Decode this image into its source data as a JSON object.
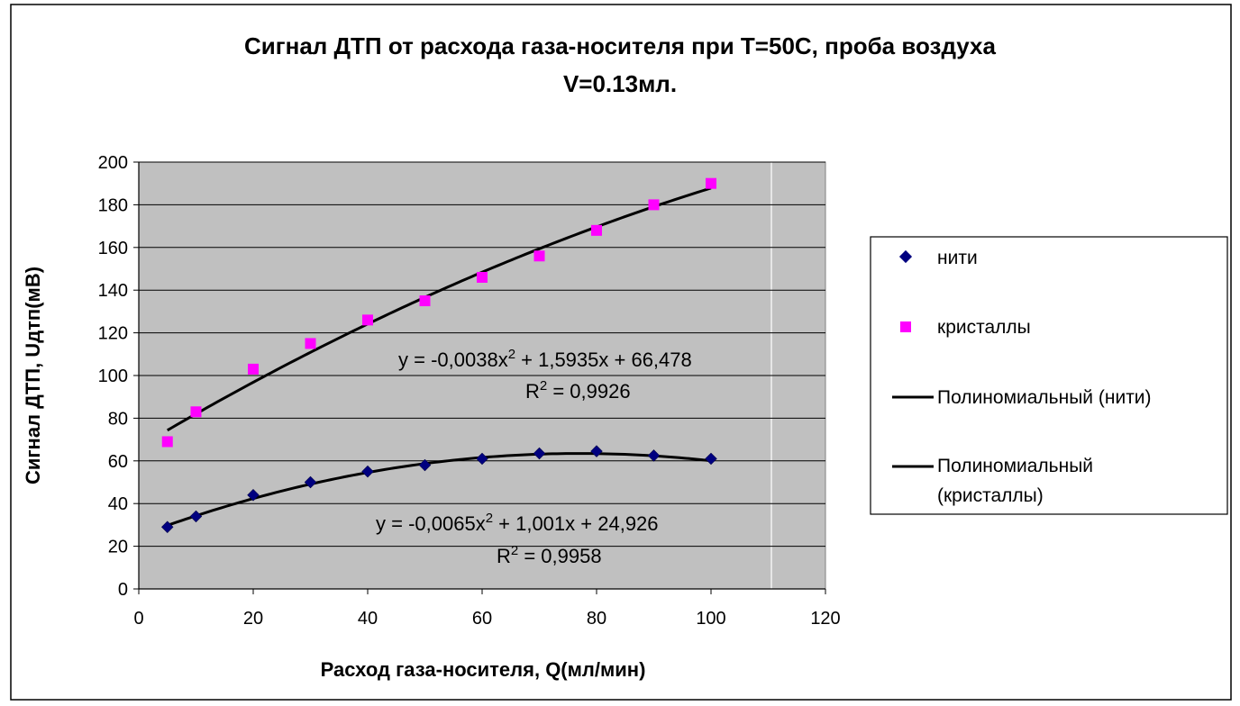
{
  "chart_data": {
    "type": "scatter",
    "title_line1": "Сигнал ДТП от расхода газа-носителя при T=50С, проба воздуха",
    "title_line2": "V=0.13мл.",
    "xlabel": "Расход газа-носителя, Q(мл/мин)",
    "ylabel": "Сигнал ДТП, Uдтп(мВ)",
    "xlim": [
      0,
      120
    ],
    "ylim": [
      0,
      200
    ],
    "xticks": [
      0,
      20,
      40,
      60,
      80,
      100,
      120
    ],
    "yticks": [
      0,
      20,
      40,
      60,
      80,
      100,
      120,
      140,
      160,
      180,
      200
    ],
    "grid": "horizontal",
    "plot_background": "#c0c0c0",
    "legend_position": "right",
    "series": [
      {
        "name": "нити",
        "marker": "diamond",
        "color": "#000080",
        "x": [
          5,
          10,
          20,
          30,
          40,
          50,
          60,
          70,
          80,
          90,
          100
        ],
        "y": [
          29,
          34,
          44,
          50,
          55,
          58,
          61,
          63.5,
          64.5,
          62.5,
          61
        ],
        "trend": {
          "a": -0.0065,
          "b": 1.001,
          "c": 24.926,
          "x_range": [
            5,
            100
          ]
        },
        "equation": "y = -0,0065x",
        "equation_tail": " + 1,001x + 24,926",
        "r2_value": " = 0,9958"
      },
      {
        "name": "кристаллы",
        "marker": "square",
        "color": "#ff00ff",
        "x": [
          5,
          10,
          20,
          30,
          40,
          50,
          60,
          70,
          80,
          90,
          100
        ],
        "y": [
          69,
          83,
          103,
          115,
          126,
          135,
          146,
          156,
          168,
          180,
          190
        ],
        "trend": {
          "a": -0.0038,
          "b": 1.5935,
          "c": 66.478,
          "x_range": [
            5,
            100
          ]
        },
        "equation": "y = -0,0038x",
        "equation_tail": " + 1,5935x + 66,478",
        "r2_value": " = 0,9926"
      }
    ],
    "r2_prefix": "R",
    "superscript": "2",
    "legend": [
      {
        "label": "нити",
        "kind": "diamond",
        "color": "#000080"
      },
      {
        "label": "кристаллы",
        "kind": "square",
        "color": "#ff00ff"
      },
      {
        "label": "Полиномиальный (нити)",
        "kind": "line",
        "color": "#000000"
      },
      {
        "label_line1": "Полиномиальный",
        "label_line2": "(кристаллы)",
        "kind": "line",
        "color": "#000000"
      }
    ]
  }
}
